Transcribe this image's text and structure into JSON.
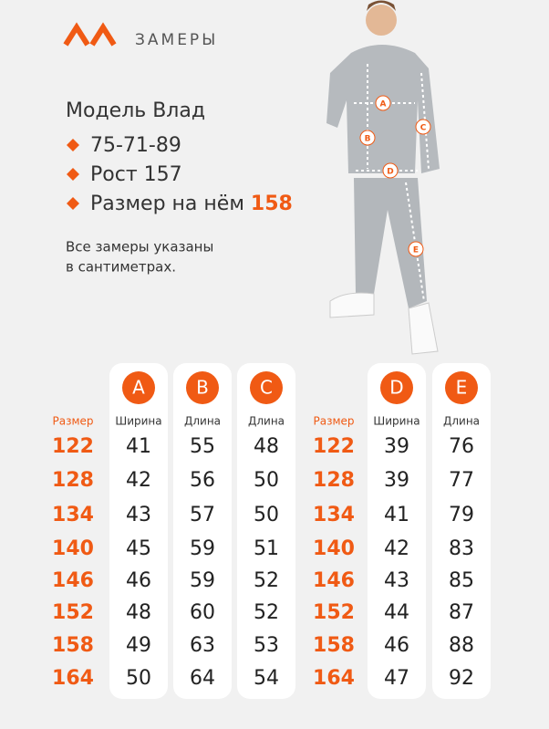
{
  "header": {
    "title": "ЗАМЕРЫ"
  },
  "model": {
    "name": "Модель Влад",
    "params": [
      "75-71-89",
      "Рост 157"
    ],
    "size_label": "Размер на нём",
    "size_value": "158",
    "note": [
      "Все замеры указаны",
      "в сантиметрах."
    ]
  },
  "photo": {
    "markers": [
      "A",
      "B",
      "C",
      "D",
      "E"
    ]
  },
  "tables": [
    {
      "size_header": "Размер",
      "sizes": [
        122,
        128,
        134,
        140,
        146,
        152,
        158,
        164
      ],
      "columns": [
        {
          "letter": "A",
          "label": "Ширина",
          "values": [
            41,
            42,
            43,
            45,
            46,
            48,
            49,
            50
          ]
        },
        {
          "letter": "B",
          "label": "Длина",
          "values": [
            55,
            56,
            57,
            59,
            59,
            60,
            63,
            64
          ]
        },
        {
          "letter": "C",
          "label": "Длина",
          "values": [
            48,
            50,
            50,
            51,
            52,
            52,
            53,
            54
          ]
        }
      ]
    },
    {
      "size_header": "Размер",
      "sizes": [
        122,
        128,
        134,
        140,
        146,
        152,
        158,
        164
      ],
      "columns": [
        {
          "letter": "D",
          "label": "Ширина",
          "values": [
            39,
            39,
            41,
            42,
            43,
            44,
            46,
            47
          ]
        },
        {
          "letter": "E",
          "label": "Длина",
          "values": [
            76,
            77,
            79,
            83,
            85,
            87,
            88,
            92
          ]
        }
      ]
    }
  ]
}
